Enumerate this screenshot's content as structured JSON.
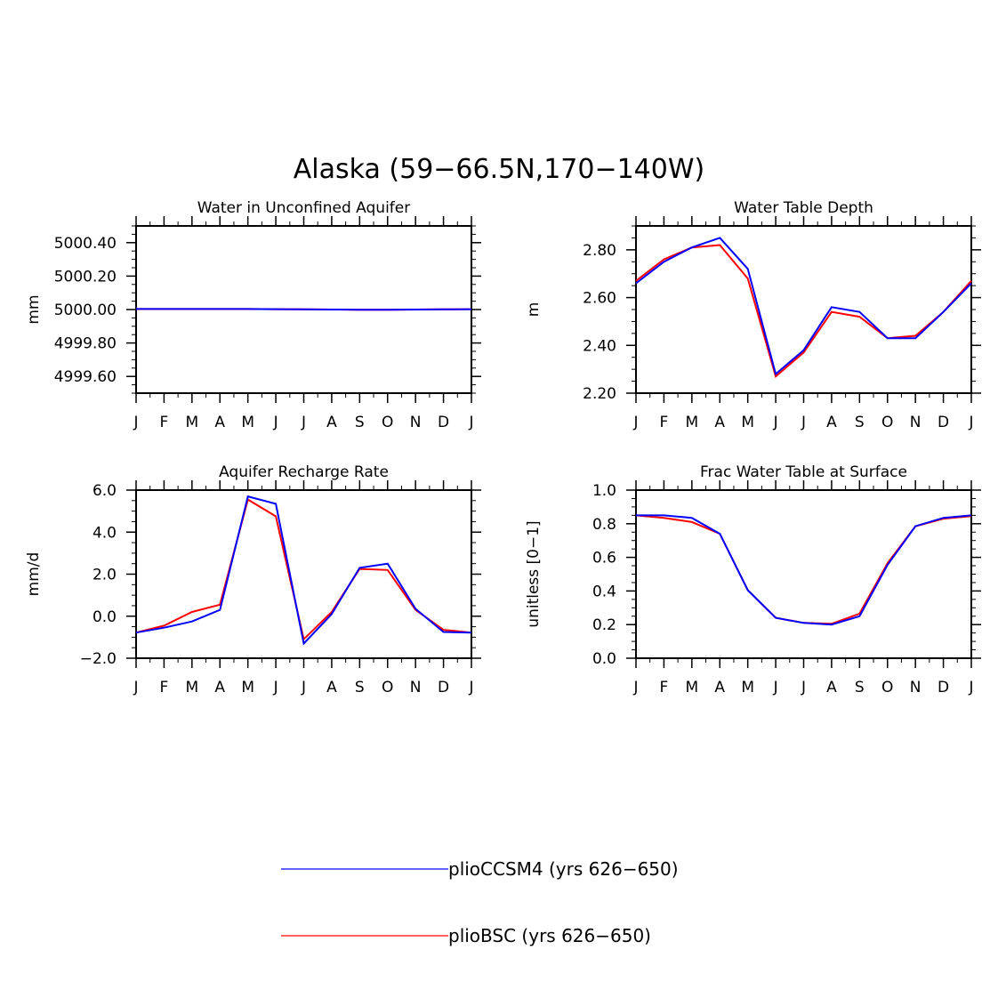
{
  "figure_title": "Alaska (59−66.5N,170−140W)",
  "colors": {
    "plioCCSM4": "#0000ff",
    "plioBSC": "#ff0000"
  },
  "legend": [
    {
      "label": "plioCCSM4 (yrs 626−650)",
      "color": "#0000ff"
    },
    {
      "label": "plioBSC (yrs 626−650)",
      "color": "#ff0000"
    }
  ],
  "chart_data": [
    {
      "type": "line",
      "title": "Water in Unconfined Aquifer",
      "ylabel": "mm",
      "xlabel": "",
      "categories": [
        "J",
        "F",
        "M",
        "A",
        "M",
        "J",
        "J",
        "A",
        "S",
        "O",
        "N",
        "D",
        "J"
      ],
      "ylim": [
        4999.5,
        5000.5
      ],
      "yticks": [
        4999.6,
        4999.8,
        5000.0,
        5000.2,
        5000.4
      ],
      "ytick_labels": [
        "4999.60",
        "4999.80",
        "5000.00",
        "5000.20",
        "5000.40"
      ],
      "grid": false,
      "series": [
        {
          "name": "plioCCSM4",
          "color": "#0000ff",
          "values": [
            5000.003,
            5000.003,
            5000.003,
            5000.003,
            5000.003,
            5000.002,
            5000.001,
            5000.0,
            4999.999,
            4999.999,
            5000.0,
            5000.001,
            5000.002
          ]
        },
        {
          "name": "plioBSC",
          "color": "#ff0000",
          "values": [
            5000.003,
            5000.003,
            5000.003,
            5000.003,
            5000.003,
            5000.002,
            5000.001,
            5000.0,
            4999.999,
            4999.999,
            5000.0,
            5000.001,
            5000.002
          ]
        }
      ]
    },
    {
      "type": "line",
      "title": "Water Table Depth",
      "ylabel": "m",
      "xlabel": "",
      "categories": [
        "J",
        "F",
        "M",
        "A",
        "M",
        "J",
        "J",
        "A",
        "S",
        "O",
        "N",
        "D",
        "J"
      ],
      "ylim": [
        2.2,
        2.9
      ],
      "yticks": [
        2.2,
        2.4,
        2.6,
        2.8
      ],
      "ytick_labels": [
        "2.20",
        "2.40",
        "2.60",
        "2.80"
      ],
      "grid": false,
      "series": [
        {
          "name": "plioCCSM4",
          "color": "#0000ff",
          "values": [
            2.66,
            2.75,
            2.81,
            2.85,
            2.72,
            2.28,
            2.38,
            2.56,
            2.54,
            2.43,
            2.43,
            2.54,
            2.66
          ]
        },
        {
          "name": "plioBSC",
          "color": "#ff0000",
          "values": [
            2.67,
            2.76,
            2.81,
            2.82,
            2.68,
            2.27,
            2.37,
            2.54,
            2.52,
            2.43,
            2.44,
            2.54,
            2.67
          ]
        }
      ]
    },
    {
      "type": "line",
      "title": "Aquifer Recharge Rate",
      "ylabel": "mm/d",
      "xlabel": "",
      "categories": [
        "J",
        "F",
        "M",
        "A",
        "M",
        "J",
        "J",
        "A",
        "S",
        "O",
        "N",
        "D",
        "J"
      ],
      "ylim": [
        -2.0,
        6.0
      ],
      "yticks": [
        -2.0,
        0.0,
        2.0,
        4.0,
        6.0
      ],
      "ytick_labels": [
        "−2.0",
        "0.0",
        "2.0",
        "4.0",
        "6.0"
      ],
      "grid": false,
      "series": [
        {
          "name": "plioCCSM4",
          "color": "#0000ff",
          "values": [
            -0.78,
            -0.55,
            -0.25,
            0.3,
            5.7,
            5.35,
            -1.3,
            0.1,
            2.3,
            2.5,
            0.35,
            -0.75,
            -0.78
          ]
        },
        {
          "name": "plioBSC",
          "color": "#ff0000",
          "values": [
            -0.78,
            -0.45,
            0.2,
            0.55,
            5.55,
            4.75,
            -1.1,
            0.2,
            2.25,
            2.2,
            0.3,
            -0.65,
            -0.78
          ]
        }
      ]
    },
    {
      "type": "line",
      "title": "Frac Water Table at Surface",
      "ylabel": "unitless [0−1]",
      "xlabel": "",
      "categories": [
        "J",
        "F",
        "M",
        "A",
        "M",
        "J",
        "J",
        "A",
        "S",
        "O",
        "N",
        "D",
        "J"
      ],
      "ylim": [
        0.0,
        1.0
      ],
      "yticks": [
        0.0,
        0.2,
        0.4,
        0.6,
        0.8,
        1.0
      ],
      "ytick_labels": [
        "0.0",
        "0.2",
        "0.4",
        "0.6",
        "0.8",
        "1.0"
      ],
      "grid": false,
      "series": [
        {
          "name": "plioCCSM4",
          "color": "#0000ff",
          "values": [
            0.85,
            0.85,
            0.835,
            0.74,
            0.405,
            0.24,
            0.21,
            0.2,
            0.25,
            0.555,
            0.785,
            0.835,
            0.85
          ]
        },
        {
          "name": "plioBSC",
          "color": "#ff0000",
          "values": [
            0.85,
            0.835,
            0.81,
            0.74,
            0.405,
            0.24,
            0.21,
            0.205,
            0.265,
            0.565,
            0.785,
            0.83,
            0.845
          ]
        }
      ]
    }
  ]
}
